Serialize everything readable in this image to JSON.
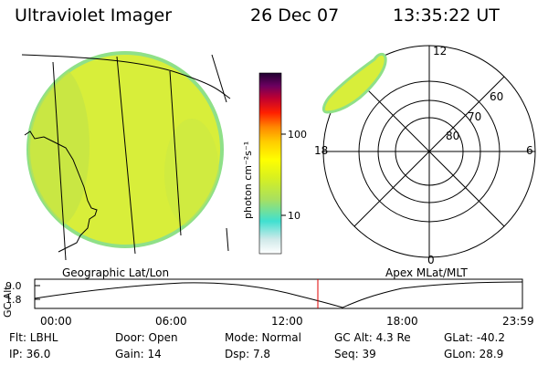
{
  "header": {
    "instrument": "Ultraviolet Imager",
    "date": "26 Dec 07",
    "time": "13:35:22 UT"
  },
  "left_panel": {
    "caption": "Geographic Lat/Lon"
  },
  "right_panel": {
    "caption": "Apex MLat/MLT",
    "mlt_labels": {
      "top": "12",
      "right": "6",
      "bottom": "0",
      "left": "18"
    },
    "lat_labels": [
      "60",
      "70",
      "80"
    ]
  },
  "colorbar": {
    "unit_label": "photon cm⁻²s⁻¹",
    "tick_labels": [
      "100",
      "10"
    ],
    "colors": [
      "#ffffff",
      "#cfe9e9",
      "#40e0d0",
      "#a8e060",
      "#d8f020",
      "#ffff00",
      "#ffcc00",
      "#ff8800",
      "#ff2000",
      "#c00030",
      "#6a0060",
      "#200030"
    ]
  },
  "altitude_plot": {
    "y_label": "GC Alt",
    "y_ticks": [
      "9.0",
      "1.8"
    ],
    "x_ticks": [
      "00:00",
      "06:00",
      "12:00",
      "18:00",
      "23:59"
    ],
    "marker_time": "13:35"
  },
  "footer": {
    "flt": "Flt:  LBHL",
    "ip": "IP: 36.0",
    "door": "Door: Open",
    "gain": "Gain: 14",
    "mode": "Mode:  Normal",
    "dsp": "Dsp:     7.8",
    "gc_alt": "GC Alt:  4.3 Re",
    "seq": "Seq: 39",
    "glat": "GLat:  -40.2",
    "glon": "GLon:   28.9"
  },
  "colors": {
    "disk_fill": "#d8ee3a",
    "disk_edge": "#8fe088",
    "marker": "#e00000",
    "lines": "#000000"
  }
}
